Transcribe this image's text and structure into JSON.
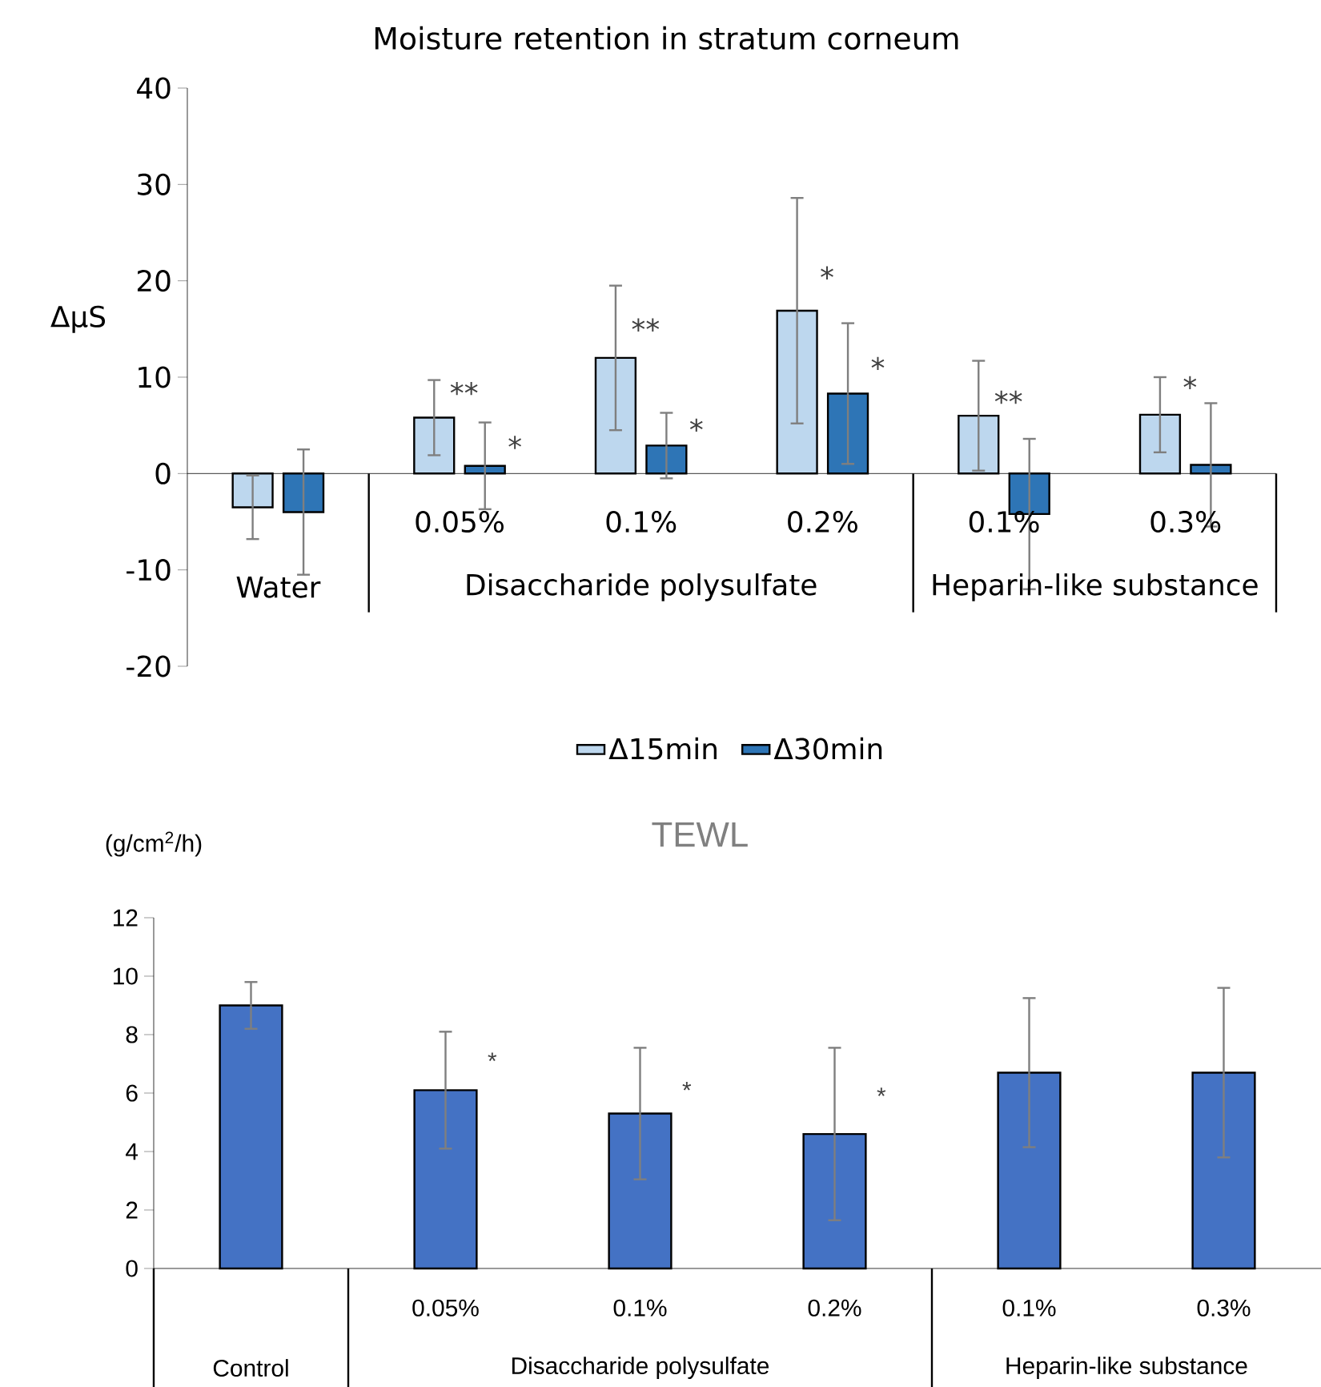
{
  "chart_data": [
    {
      "type": "bar",
      "title": "Moisture retention in stratum corneum",
      "ylabel": "ΔμS",
      "categories": [
        null,
        "0.05%",
        "0.1%",
        "0.2%",
        "0.1%",
        "0.3%"
      ],
      "series": [
        {
          "name": "Δ15min",
          "color": "#bdd7ee",
          "values": [
            -3.5,
            5.8,
            12,
            16.9,
            6,
            6.1
          ],
          "errors": [
            3.3,
            3.9,
            7.5,
            11.7,
            5.7,
            3.9
          ]
        },
        {
          "name": "Δ30min",
          "color": "#2e75b6",
          "values": [
            -4,
            0.8,
            2.9,
            8.3,
            -4.2,
            0.9
          ],
          "errors": [
            6.5,
            4.5,
            3.4,
            7.3,
            7.8,
            6.4
          ]
        }
      ],
      "ylim": [
        -20,
        40
      ],
      "yticks": [
        -20,
        -10,
        0,
        10,
        20,
        30,
        40
      ],
      "legend": "bottom",
      "annotations": [
        "Water",
        "Disaccharide polysulfate",
        "Heparin-like substance",
        "**",
        "*",
        "**",
        "*",
        "*",
        "*",
        "**",
        "*"
      ]
    },
    {
      "type": "bar",
      "title": "TEWL",
      "ylabel": "(g/cm$^{2}$/h)",
      "categories": [
        null,
        "0.05%",
        "0.1%",
        "0.2%",
        "0.1%",
        "0.3%"
      ],
      "values": [
        9.0,
        6.1,
        5.3,
        4.6,
        6.7,
        6.7
      ],
      "errors": [
        0.8,
        2.0,
        2.25,
        2.95,
        2.55,
        2.9
      ],
      "color": "#4472c4",
      "ylim": [
        0,
        12
      ],
      "yticks": [
        0,
        2,
        4,
        6,
        8,
        10,
        12
      ],
      "annotations": [
        "Control",
        "Disaccharide polysulfate",
        "Heparin-like substance",
        "*",
        "*",
        "*"
      ]
    }
  ]
}
